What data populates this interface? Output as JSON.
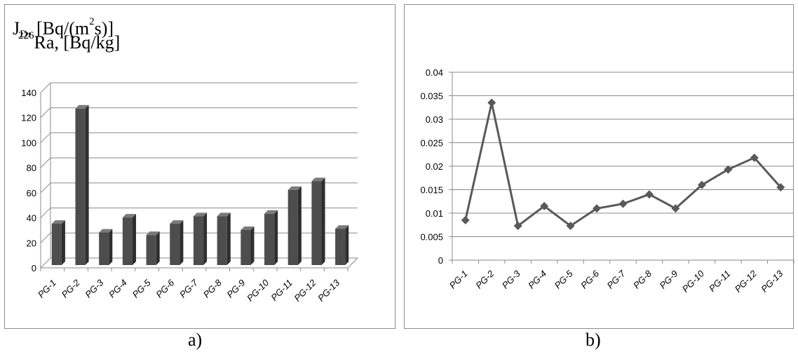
{
  "charts": [
    {
      "id": "a",
      "title_prefix": "226",
      "title_main": "Ra, [Bq/kg]",
      "caption": "a)"
    },
    {
      "id": "b",
      "title_prefix": "J",
      "title_sub": "D",
      "title_main": ", [Bq/(m",
      "title_sup": "2",
      "title_end": "s)]",
      "caption": "b)"
    }
  ],
  "chart_data": [
    {
      "type": "bar",
      "style": "3d-column",
      "title": "226Ra, [Bq/kg]",
      "categories": [
        "PG-1",
        "PG-2",
        "PG-3",
        "PG-4",
        "PG-5",
        "PG-6",
        "PG-7",
        "PG-8",
        "PG-9",
        "PG-10",
        "PG-11",
        "PG-12",
        "PG-13"
      ],
      "values": [
        33,
        125,
        26,
        38,
        24,
        33,
        39,
        39,
        28,
        41,
        60,
        67,
        29
      ],
      "ylim": [
        0,
        140
      ],
      "yticks": [
        "0",
        "20",
        "40",
        "60",
        "80",
        "100",
        "120",
        "140"
      ],
      "grid": true,
      "bar_color": "#4d4d4d"
    },
    {
      "type": "line",
      "marker": "diamond",
      "title": "JD, [Bq/(m2s)]",
      "categories": [
        "PG-1",
        "PG-2",
        "PG-3",
        "PG-4",
        "PG-5",
        "PG-6",
        "PG-7",
        "PG-8",
        "PG-9",
        "PG-10",
        "PG-11",
        "PG-12",
        "PG-13"
      ],
      "values": [
        0.0085,
        0.0335,
        0.0073,
        0.0115,
        0.0073,
        0.011,
        0.012,
        0.014,
        0.011,
        0.016,
        0.0193,
        0.0218,
        0.0155
      ],
      "ylim": [
        0,
        0.04
      ],
      "yticks": [
        "0",
        "0.005",
        "0.01",
        "0.015",
        "0.02",
        "0.025",
        "0.03",
        "0.035",
        "0.04"
      ],
      "grid": true,
      "line_color": "#595959"
    }
  ]
}
